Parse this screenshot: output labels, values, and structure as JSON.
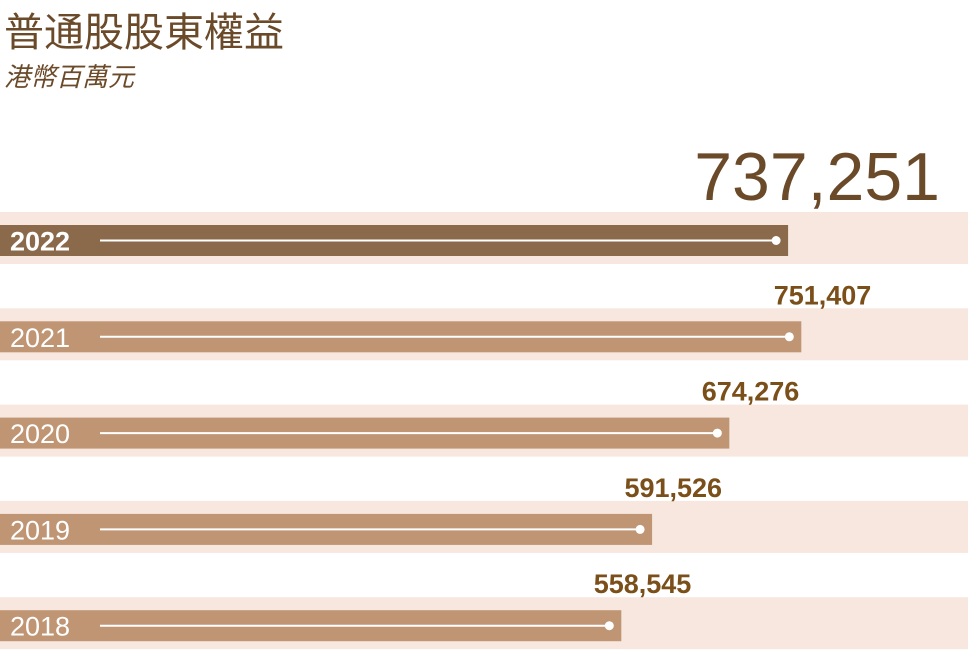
{
  "chart_data": {
    "type": "bar",
    "orientation": "horizontal",
    "title": "普通股股東權益",
    "subtitle": "港幣百萬元",
    "categories": [
      "2022",
      "2021",
      "2020",
      "2019",
      "2018"
    ],
    "values": [
      737251,
      751407,
      674276,
      591526,
      558545
    ],
    "value_labels": [
      "737,251",
      "751,407",
      "674,276",
      "591,526",
      "558,545"
    ],
    "colors": [
      "#8b6a4c",
      "#bf9574",
      "#bf9574",
      "#bf9574",
      "#bf9574"
    ],
    "band_color": "#f7e7df",
    "xlim": [
      0,
      930000
    ]
  }
}
